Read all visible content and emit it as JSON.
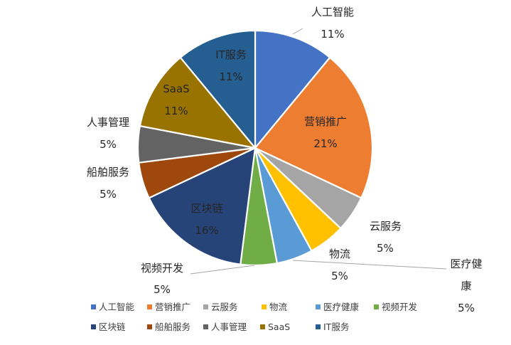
{
  "chart_data": {
    "type": "pie",
    "title": "",
    "categories": [
      "人工智能",
      "营销推广",
      "云服务",
      "物流",
      "医疗健康",
      "视频开发",
      "区块链",
      "船舶服务",
      "人事管理",
      "SaaS",
      "IT服务"
    ],
    "values": [
      11,
      21,
      5,
      5,
      5,
      5,
      16,
      5,
      5,
      11,
      11
    ],
    "value_labels": [
      "11%",
      "21%",
      "5%",
      "5%",
      "5%",
      "5%",
      "16%",
      "5%",
      "5%",
      "11%",
      "11%"
    ],
    "colors": [
      "#4472C4",
      "#ED7D31",
      "#A5A5A5",
      "#FFC000",
      "#5B9BD5",
      "#70AD47",
      "#264478",
      "#9E480E",
      "#636363",
      "#997300",
      "#255E91"
    ],
    "legend_position": "bottom",
    "legend_rows": [
      [
        "人工智能",
        "营销推广",
        "云服务",
        "物流",
        "医疗健康",
        "视频开发"
      ],
      [
        "区块链",
        "船舶服务",
        "人事管理",
        "SaaS",
        "IT服务"
      ]
    ]
  }
}
